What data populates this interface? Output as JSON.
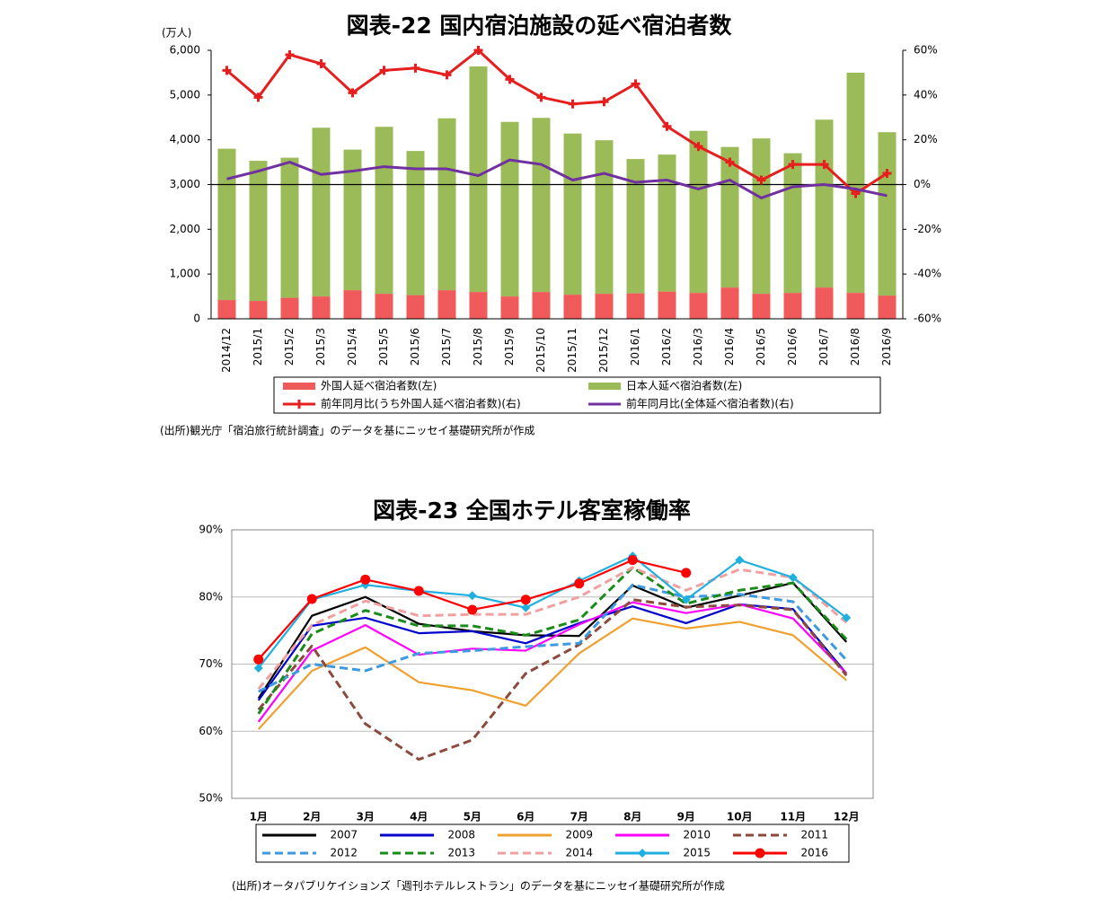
{
  "chart_data": [
    {
      "type": "bar",
      "title": "図表-22 国内宿泊施設の延べ宿泊者数",
      "unit": "(万人)",
      "categories": [
        "2014/12",
        "2015/1",
        "2015/2",
        "2015/3",
        "2015/4",
        "2015/5",
        "2015/6",
        "2015/7",
        "2015/8",
        "2015/9",
        "2015/10",
        "2015/11",
        "2015/12",
        "2016/1",
        "2016/2",
        "2016/3",
        "2016/4",
        "2016/5",
        "2016/6",
        "2016/7",
        "2016/8",
        "2016/9"
      ],
      "stacked": true,
      "series": [
        {
          "name": "外国人延べ宿泊者数(左)",
          "color": "#f05a5a",
          "type": "bar",
          "values": [
            420,
            400,
            470,
            500,
            640,
            560,
            530,
            640,
            600,
            500,
            600,
            540,
            560,
            570,
            610,
            580,
            700,
            560,
            580,
            700,
            580,
            520
          ]
        },
        {
          "name": "日本人延べ宿泊者数(左)",
          "color": "#9bbb59",
          "type": "bar",
          "values": [
            3380,
            3130,
            3130,
            3770,
            3140,
            3730,
            3220,
            3840,
            5040,
            3900,
            3890,
            3600,
            3430,
            3000,
            3060,
            3620,
            3140,
            3470,
            3120,
            3750,
            4920,
            3650
          ]
        },
        {
          "name": "前年同月比(うち外国人延べ宿泊者数)(右)",
          "color": "#e61e1e",
          "type": "line",
          "axis": "y2",
          "marker": "plus",
          "values": [
            51,
            39,
            58,
            54,
            41,
            51,
            52,
            49,
            60,
            47,
            39,
            36,
            37,
            45,
            26,
            17,
            10,
            2,
            9,
            9,
            -4,
            5
          ]
        },
        {
          "name": "前年同月比(全体延べ宿泊者数)(右)",
          "color": "#7030a0",
          "type": "line",
          "axis": "y2",
          "values": [
            2.5,
            6,
            10,
            4.5,
            6,
            8,
            7,
            7,
            4,
            11,
            9,
            2,
            5,
            1,
            2,
            -2,
            2,
            -6,
            -1,
            0,
            -2,
            -5
          ]
        }
      ],
      "ylim": [
        0,
        6000
      ],
      "yticks": [
        0,
        {
          "value": 1000,
          "label": "1,000"
        },
        {
          "value": 2000,
          "label": "2,000"
        },
        {
          "value": 3000,
          "label": "3,000"
        },
        {
          "value": 4000,
          "label": "4,000"
        },
        {
          "value": 5000,
          "label": "5,000"
        },
        {
          "value": 6000,
          "label": "6,000"
        }
      ],
      "y2lim": [
        -60,
        60
      ],
      "y2ticks": [
        {
          "value": -60,
          "label": "-60%"
        },
        {
          "value": -40,
          "label": "-40%"
        },
        {
          "value": -20,
          "label": "-20%"
        },
        {
          "value": 0,
          "label": "0%"
        },
        {
          "value": 20,
          "label": "20%"
        },
        {
          "value": 40,
          "label": "40%"
        },
        {
          "value": 60,
          "label": "60%"
        }
      ],
      "grid": false,
      "legend": "bottom",
      "source": "(出所)観光庁「宿泊旅行統計調査」のデータを基にニッセイ基礎研究所が作成"
    },
    {
      "type": "line",
      "title": "図表-23 全国ホテル客室稼働率",
      "categories": [
        "1月",
        "2月",
        "3月",
        "4月",
        "5月",
        "6月",
        "7月",
        "8月",
        "9月",
        "10月",
        "11月",
        "12月"
      ],
      "series": [
        {
          "name": "2007",
          "color": "#000000",
          "values": [
            64.9,
            77.2,
            80.0,
            76.0,
            74.9,
            74.3,
            74.2,
            81.7,
            78.4,
            80.2,
            82.1,
            73.3
          ]
        },
        {
          "name": "2008",
          "color": "#0000cc",
          "values": [
            64.6,
            75.7,
            76.9,
            74.6,
            74.9,
            73.1,
            76.1,
            78.6,
            76.1,
            78.9,
            78.2,
            68.6
          ]
        },
        {
          "name": "2009",
          "color": "#f0a030",
          "values": [
            60.3,
            69.0,
            72.5,
            67.3,
            66.1,
            63.8,
            71.6,
            76.8,
            75.3,
            76.3,
            74.3,
            67.6
          ]
        },
        {
          "name": "2010",
          "color": "#ff00ff",
          "values": [
            61.4,
            72.0,
            75.8,
            71.4,
            72.3,
            72.0,
            75.9,
            79.2,
            77.6,
            78.9,
            76.8,
            68.6
          ]
        },
        {
          "name": "2011",
          "color": "#8b4a3c",
          "dashed": true,
          "values": [
            63.2,
            72.7,
            61.1,
            55.8,
            58.7,
            68.6,
            72.9,
            79.6,
            78.5,
            78.8,
            78.1,
            68.3
          ]
        },
        {
          "name": "2012",
          "color": "#3c9ae0",
          "dashed": true,
          "values": [
            65.9,
            70.0,
            69.0,
            71.6,
            72.0,
            72.6,
            73.1,
            81.8,
            80.0,
            80.4,
            79.3,
            70.6
          ]
        },
        {
          "name": "2013",
          "color": "#1a8c1a",
          "dashed": true,
          "values": [
            62.6,
            74.5,
            78.0,
            75.7,
            75.7,
            74.3,
            76.6,
            84.4,
            79.0,
            81.0,
            82.1,
            73.7
          ]
        },
        {
          "name": "2014",
          "color": "#f0a0a0",
          "dashed": true,
          "values": [
            66.3,
            75.8,
            79.4,
            77.2,
            77.4,
            77.4,
            80.0,
            84.4,
            81.0,
            84.1,
            82.9,
            76.2
          ]
        },
        {
          "name": "2015",
          "color": "#20b0e0",
          "marker": "diamond",
          "values": [
            69.4,
            79.6,
            81.8,
            80.9,
            80.2,
            78.4,
            82.4,
            86.1,
            79.6,
            85.5,
            82.9,
            76.9
          ]
        },
        {
          "name": "2016",
          "color": "#ff0000",
          "marker": "circle",
          "values": [
            70.7,
            79.7,
            82.6,
            80.9,
            78.1,
            79.6,
            82.0,
            85.5,
            83.6,
            null,
            null,
            null
          ]
        }
      ],
      "ylim": [
        50,
        90
      ],
      "yticks": [
        {
          "value": 50,
          "label": "50%"
        },
        {
          "value": 60,
          "label": "60%"
        },
        {
          "value": 70,
          "label": "70%"
        },
        {
          "value": 80,
          "label": "80%"
        },
        {
          "value": 90,
          "label": "90%"
        }
      ],
      "grid": true,
      "legend": "bottom",
      "source": "(出所)オータパブリケイションズ「週刊ホテルレストラン」のデータを基にニッセイ基礎研究所が作成"
    }
  ]
}
